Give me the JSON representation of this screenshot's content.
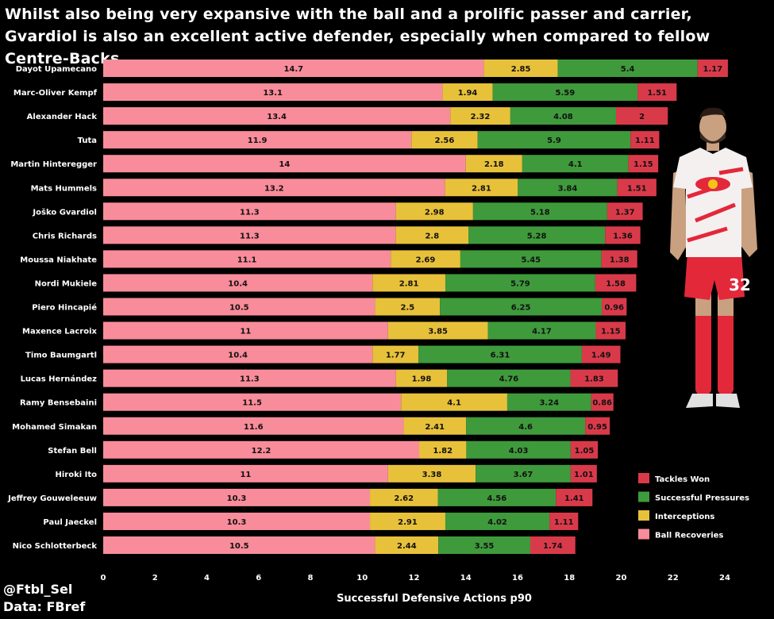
{
  "title": "Whilst also being very expansive with the ball and a prolific passer and carrier, Gvardiol is also an excellent active defender, especially when compared to fellow Centre-Backs.",
  "credit": {
    "handle": "@Ftbl_Sel",
    "source": "Data: FBref"
  },
  "chart_data": {
    "type": "bar",
    "orientation": "horizontal",
    "stacked": true,
    "title": "Whilst also being very expansive with the ball and a prolific passer and carrier, Gvardiol is also an excellent active defender, especially when compared to fellow Centre-Backs.",
    "xlabel": "Successful Defensive Actions p90",
    "ylabel": "",
    "xlim": [
      0,
      24
    ],
    "xticks": [
      0,
      2,
      4,
      6,
      8,
      10,
      12,
      14,
      16,
      18,
      20,
      22,
      24
    ],
    "grid": false,
    "legend_position": "bottom-right",
    "categories": [
      "Dayot Upamecano",
      "Marc-Oliver Kempf",
      "Alexander Hack",
      "Tuta",
      "Martin Hinteregger",
      "Mats Hummels",
      "Joško Gvardiol",
      "Chris Richards",
      "Moussa Niakhate",
      "Nordi Mukiele",
      "Piero Hincapié",
      "Maxence Lacroix",
      "Timo Baumgartl",
      "Lucas Hernández",
      "Ramy Bensebaini",
      "Mohamed Simakan",
      "Stefan Bell",
      "Hiroki Ito",
      "Jeffrey Gouweleeuw",
      "Paul Jaeckel",
      "Nico Schlotterbeck"
    ],
    "series": [
      {
        "name": "Ball Recoveries",
        "color": "#f98c9a",
        "values": [
          14.7,
          13.1,
          13.4,
          11.9,
          14,
          13.2,
          11.3,
          11.3,
          11.1,
          10.4,
          10.5,
          11,
          10.4,
          11.3,
          11.5,
          11.6,
          12.2,
          11,
          10.3,
          10.3,
          10.5
        ]
      },
      {
        "name": "Interceptions",
        "color": "#e8c13b",
        "values": [
          2.85,
          1.94,
          2.32,
          2.56,
          2.18,
          2.81,
          2.98,
          2.8,
          2.69,
          2.81,
          2.5,
          3.85,
          1.77,
          1.98,
          4.1,
          2.41,
          1.82,
          3.38,
          2.62,
          2.91,
          2.44
        ]
      },
      {
        "name": "Successful Pressures",
        "color": "#3f9a3c",
        "values": [
          5.4,
          5.59,
          4.08,
          5.9,
          4.1,
          3.84,
          5.18,
          5.28,
          5.45,
          5.79,
          6.25,
          4.17,
          6.31,
          4.76,
          3.24,
          4.6,
          4.03,
          3.67,
          4.56,
          4.02,
          3.55
        ]
      },
      {
        "name": "Tackles Won",
        "color": "#d93a4a",
        "values": [
          1.17,
          1.51,
          2,
          1.11,
          1.15,
          1.51,
          1.37,
          1.36,
          1.38,
          1.58,
          0.96,
          1.15,
          1.49,
          1.83,
          0.86,
          0.95,
          1.05,
          1.01,
          1.41,
          1.11,
          1.74
        ]
      }
    ],
    "legend_order": [
      "Tackles Won",
      "Successful Pressures",
      "Interceptions",
      "Ball Recoveries"
    ]
  },
  "photo": {
    "icon": "player-photo-icon",
    "shirt_number": "32"
  }
}
